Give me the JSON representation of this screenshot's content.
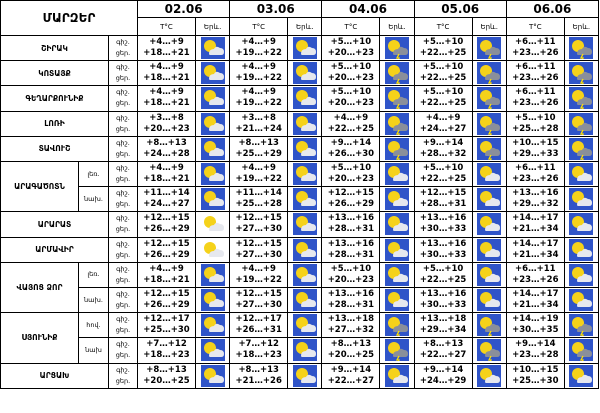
{
  "header": {
    "title": "ՄԱՐԶԵՐ",
    "days": [
      {
        "date": "02.06",
        "t_label": "T°C",
        "icon_label": "Երև."
      },
      {
        "date": "03.06",
        "t_label": "T°C",
        "icon_label": "Երև."
      },
      {
        "date": "04.06",
        "t_label": "T°C",
        "icon_label": "Երև."
      },
      {
        "date": "05.06",
        "t_label": "T°C",
        "icon_label": "Երև."
      },
      {
        "date": "06.06",
        "t_label": "T°C",
        "icon_label": "Երև."
      }
    ]
  },
  "rows": [
    {
      "region": "ՇԻՐԱԿ",
      "subrows": [
        {
          "night_label": "գիշ.",
          "day_label": "ցեր.",
          "temps": [
            [
              "+4…+9",
              "+18…+21"
            ],
            [
              "+4…+9",
              "+19…+22"
            ],
            [
              "+5…+10",
              "+20…+23"
            ],
            [
              "+5…+10",
              "+22…+25"
            ],
            [
              "+6…+11",
              "+23…+26"
            ]
          ]
        }
      ]
    },
    {
      "region": "ԿՈՏԱՅՔ",
      "subrows": [
        {
          "night_label": "գիշ.",
          "day_label": "ցեր.",
          "temps": [
            [
              "+4…+9",
              "+18…+21"
            ],
            [
              "+4…+9",
              "+19…+22"
            ],
            [
              "+5…+10",
              "+20…+23"
            ],
            [
              "+5…+10",
              "+22…+25"
            ],
            [
              "+6…+11",
              "+23…+26"
            ]
          ]
        }
      ]
    },
    {
      "region": "ԳԵՂԱՐՔՈՒՆԻՔ",
      "subrows": [
        {
          "night_label": "գիշ.",
          "day_label": "ցեր.",
          "temps": [
            [
              "+4…+9",
              "+18…+21"
            ],
            [
              "+4…+9",
              "+19…+22"
            ],
            [
              "+5…+10",
              "+20…+23"
            ],
            [
              "+5…+10",
              "+22…+25"
            ],
            [
              "+6…+11",
              "+23…+26"
            ]
          ]
        }
      ]
    },
    {
      "region": "ԼՈՌԻ",
      "subrows": [
        {
          "night_label": "գիշ.",
          "day_label": "ցեր.",
          "temps": [
            [
              "+3…+8",
              "+20…+23"
            ],
            [
              "+3…+8",
              "+21…+24"
            ],
            [
              "+4…+9",
              "+22…+25"
            ],
            [
              "+4…+9",
              "+24…+27"
            ],
            [
              "+5…+10",
              "+25…+28"
            ]
          ]
        }
      ]
    },
    {
      "region": "ՏԱՎՈՒՇ",
      "subrows": [
        {
          "night_label": "գիշ.",
          "day_label": "ցեր.",
          "temps": [
            [
              "+8…+13",
              "+24…+28"
            ],
            [
              "+8…+13",
              "+25…+29"
            ],
            [
              "+9…+14",
              "+26…+30"
            ],
            [
              "+9…+14",
              "+28…+32"
            ],
            [
              "+10…+15",
              "+29…+33"
            ]
          ]
        }
      ]
    },
    {
      "region": "ԱՐԱԳԱԾՈՏՆ",
      "subrows": [
        {
          "label": "լեռ.",
          "night_label": "գիշ.",
          "day_label": "ցեր.",
          "temps": [
            [
              "+4…+9",
              "+18…+21"
            ],
            [
              "+4…+9",
              "+19…+22"
            ],
            [
              "+5…+10",
              "+20…+23"
            ],
            [
              "+5…+10",
              "+22…+25"
            ],
            [
              "+6…+11",
              "+23…+26"
            ]
          ]
        },
        {
          "label": "նախ.",
          "night_label": "գիշ.",
          "day_label": "ցեր.",
          "temps": [
            [
              "+11…+14",
              "+24…+27"
            ],
            [
              "+11…+14",
              "+25…+28"
            ],
            [
              "+12…+15",
              "+26…+29"
            ],
            [
              "+12…+15",
              "+28…+31"
            ],
            [
              "+13…+16",
              "+29…+32"
            ]
          ]
        }
      ]
    },
    {
      "region": "ԱՐԱՐԱՏ",
      "subrows": [
        {
          "night_label": "գիշ.",
          "day_label": "ցեր.",
          "temps": [
            [
              "+12…+15",
              "+26…+29"
            ],
            [
              "+12…+15",
              "+27…+30"
            ],
            [
              "+13…+16",
              "+28…+31"
            ],
            [
              "+13…+16",
              "+30…+33"
            ],
            [
              "+14…+17",
              "+21…+34"
            ]
          ]
        }
      ]
    },
    {
      "region": "ԱՐՄԱՎԻՐ",
      "subrows": [
        {
          "night_label": "գիշ.",
          "day_label": "ցեր.",
          "temps": [
            [
              "+12…+15",
              "+26…+29"
            ],
            [
              "+12…+15",
              "+27…+30"
            ],
            [
              "+13…+16",
              "+28…+31"
            ],
            [
              "+13…+16",
              "+30…+33"
            ],
            [
              "+14…+17",
              "+21…+34"
            ]
          ]
        }
      ]
    },
    {
      "region": "ՎԱՅՈՑ ՁՈՐ",
      "subrows": [
        {
          "label": "լեռ.",
          "night_label": "գիշ.",
          "day_label": "ցեր.",
          "temps": [
            [
              "+4…+9",
              "+18…+21"
            ],
            [
              "+4…+9",
              "+19…+22"
            ],
            [
              "+5…+10",
              "+20…+23"
            ],
            [
              "+5…+10",
              "+22…+25"
            ],
            [
              "+6…+11",
              "+23…+26"
            ]
          ]
        },
        {
          "label": "նախ.",
          "night_label": "գիշ.",
          "day_label": "ցեր.",
          "temps": [
            [
              "+12…+15",
              "+26…+29"
            ],
            [
              "+12…+15",
              "+27…+30"
            ],
            [
              "+13…+16",
              "+28…+31"
            ],
            [
              "+13…+16",
              "+30…+33"
            ],
            [
              "+14…+17",
              "+21…+34"
            ]
          ]
        }
      ]
    },
    {
      "region": "ՍՅՈՒՆԻՔ",
      "subrows": [
        {
          "label": "հով.",
          "night_label": "գիշ.",
          "day_label": "ցեր.",
          "temps": [
            [
              "+12…+17",
              "+25…+30"
            ],
            [
              "+12…+17",
              "+26…+31"
            ],
            [
              "+13…+18",
              "+27…+32"
            ],
            [
              "+13…+18",
              "+29…+34"
            ],
            [
              "+14…+19",
              "+30…+35"
            ]
          ]
        },
        {
          "label": "նախ",
          "night_label": "գիշ.",
          "day_label": "ցեր.",
          "temps": [
            [
              "+7…+12",
              "+18…+23"
            ],
            [
              "+7…+12",
              "+18…+23"
            ],
            [
              "+8…+13",
              "+20…+25"
            ],
            [
              "+8…+13",
              "+22…+27"
            ],
            [
              "+9…+14",
              "+23…+28"
            ]
          ]
        }
      ]
    },
    {
      "region": "ԱՐՑԱԽ",
      "subrows": [
        {
          "night_label": "գիշ.",
          "day_label": "ցեր.",
          "temps": [
            [
              "+8…+13",
              "+20…+25"
            ],
            [
              "+8…+13",
              "+21…+26"
            ],
            [
              "+9…+14",
              "+22…+27"
            ],
            [
              "+9…+14",
              "+24…+29"
            ],
            [
              "+10…+15",
              "+25…+30"
            ]
          ]
        }
      ]
    }
  ]
}
